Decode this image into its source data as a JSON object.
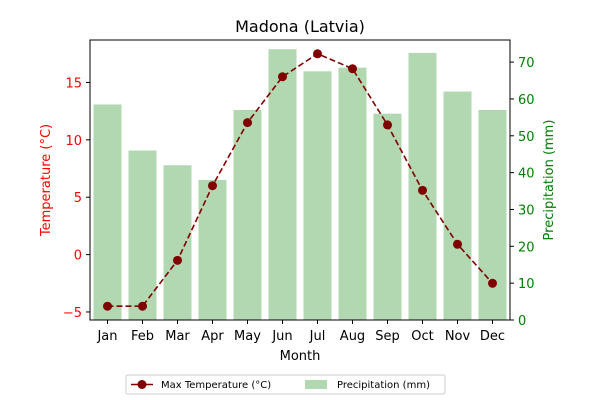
{
  "chart_data": {
    "type": "bar+line",
    "title": "Madona (Latvia)",
    "xlabel": "Month",
    "categories": [
      "Jan",
      "Feb",
      "Mar",
      "Apr",
      "May",
      "Jun",
      "Jul",
      "Aug",
      "Sep",
      "Oct",
      "Nov",
      "Dec"
    ],
    "left_axis": {
      "label": "Temperature (°C)",
      "color": "#ff0000",
      "ylim": [
        -5.7,
        18.7
      ],
      "ticks": [
        -5,
        0,
        5,
        10,
        15
      ]
    },
    "right_axis": {
      "label": "Precipitation (mm)",
      "color": "#008000",
      "ylim": [
        0,
        76
      ],
      "ticks": [
        0,
        10,
        20,
        30,
        40,
        50,
        60,
        70
      ]
    },
    "series": [
      {
        "name": "Max Temperature (°C)",
        "type": "line",
        "axis": "left",
        "color": "#800000",
        "line_style": "dashed",
        "marker": "circle",
        "values": [
          -4.5,
          -4.5,
          -0.5,
          6.0,
          11.5,
          15.5,
          17.5,
          16.2,
          11.3,
          5.6,
          0.9,
          -2.5
        ]
      },
      {
        "name": "Precipitation (mm)",
        "type": "bar",
        "axis": "right",
        "color": "#b2d8b2",
        "values": [
          58.5,
          46,
          42,
          38,
          57,
          73.5,
          67.5,
          68.5,
          56,
          72.5,
          62,
          57
        ]
      }
    ],
    "legend": {
      "placement": "bottom-center",
      "entries": [
        "Max Temperature (°C)",
        "Precipitation (mm)"
      ]
    },
    "grid": false
  }
}
